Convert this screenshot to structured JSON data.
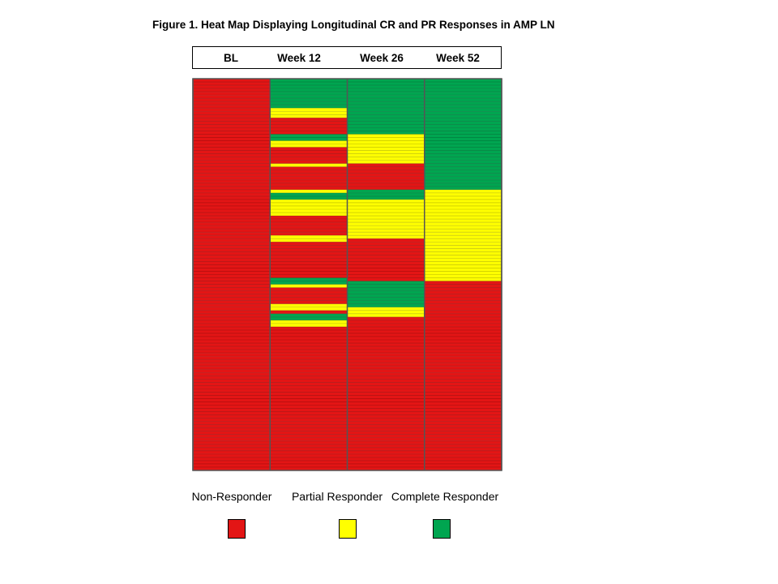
{
  "figure_title": "Figure 1.  Heat Map Displaying Longitudinal CR and PR Responses in AMP LN",
  "colors": {
    "non_responder": "#e31515",
    "partial_responder": "#ffff00",
    "complete_responder": "#00a550",
    "row_line": "#000000",
    "column_border": "#555555"
  },
  "legend": [
    {
      "label": "Non-Responder",
      "code": "N",
      "color": "#e31515"
    },
    {
      "label": "Partial Responder",
      "code": "P",
      "color": "#ffff00"
    },
    {
      "label": "Complete Responder",
      "code": "C",
      "color": "#00a550"
    }
  ],
  "chart_data": {
    "type": "heatmap",
    "title": "Figure 1.  Heat Map Displaying Longitudinal CR and PR Responses in AMP LN",
    "columns": [
      "BL",
      "Week 12",
      "Week 26",
      "Week 52"
    ],
    "row_count": 120,
    "category_codes": {
      "N": "Non-Responder",
      "P": "Partial Responder",
      "C": "Complete Responder"
    },
    "column_runs": [
      [
        [
          "N",
          120
        ]
      ],
      [
        [
          "C",
          9
        ],
        [
          "P",
          3
        ],
        [
          "N",
          5
        ],
        [
          "C",
          2
        ],
        [
          "P",
          2
        ],
        [
          "N",
          5
        ],
        [
          "P",
          1
        ],
        [
          "N",
          7
        ],
        [
          "P",
          1
        ],
        [
          "C",
          2
        ],
        [
          "P",
          5
        ],
        [
          "N",
          6
        ],
        [
          "P",
          2
        ],
        [
          "N",
          11
        ],
        [
          "C",
          2
        ],
        [
          "P",
          1
        ],
        [
          "N",
          5
        ],
        [
          "P",
          2
        ],
        [
          "N",
          1
        ],
        [
          "C",
          2
        ],
        [
          "P",
          2
        ],
        [
          "N",
          44
        ]
      ],
      [
        [
          "C",
          17
        ],
        [
          "P",
          9
        ],
        [
          "N",
          8
        ],
        [
          "C",
          3
        ],
        [
          "P",
          12
        ],
        [
          "N",
          13
        ],
        [
          "C",
          8
        ],
        [
          "P",
          3
        ],
        [
          "N",
          47
        ]
      ],
      [
        [
          "C",
          34
        ],
        [
          "P",
          28
        ],
        [
          "N",
          58
        ]
      ]
    ]
  }
}
